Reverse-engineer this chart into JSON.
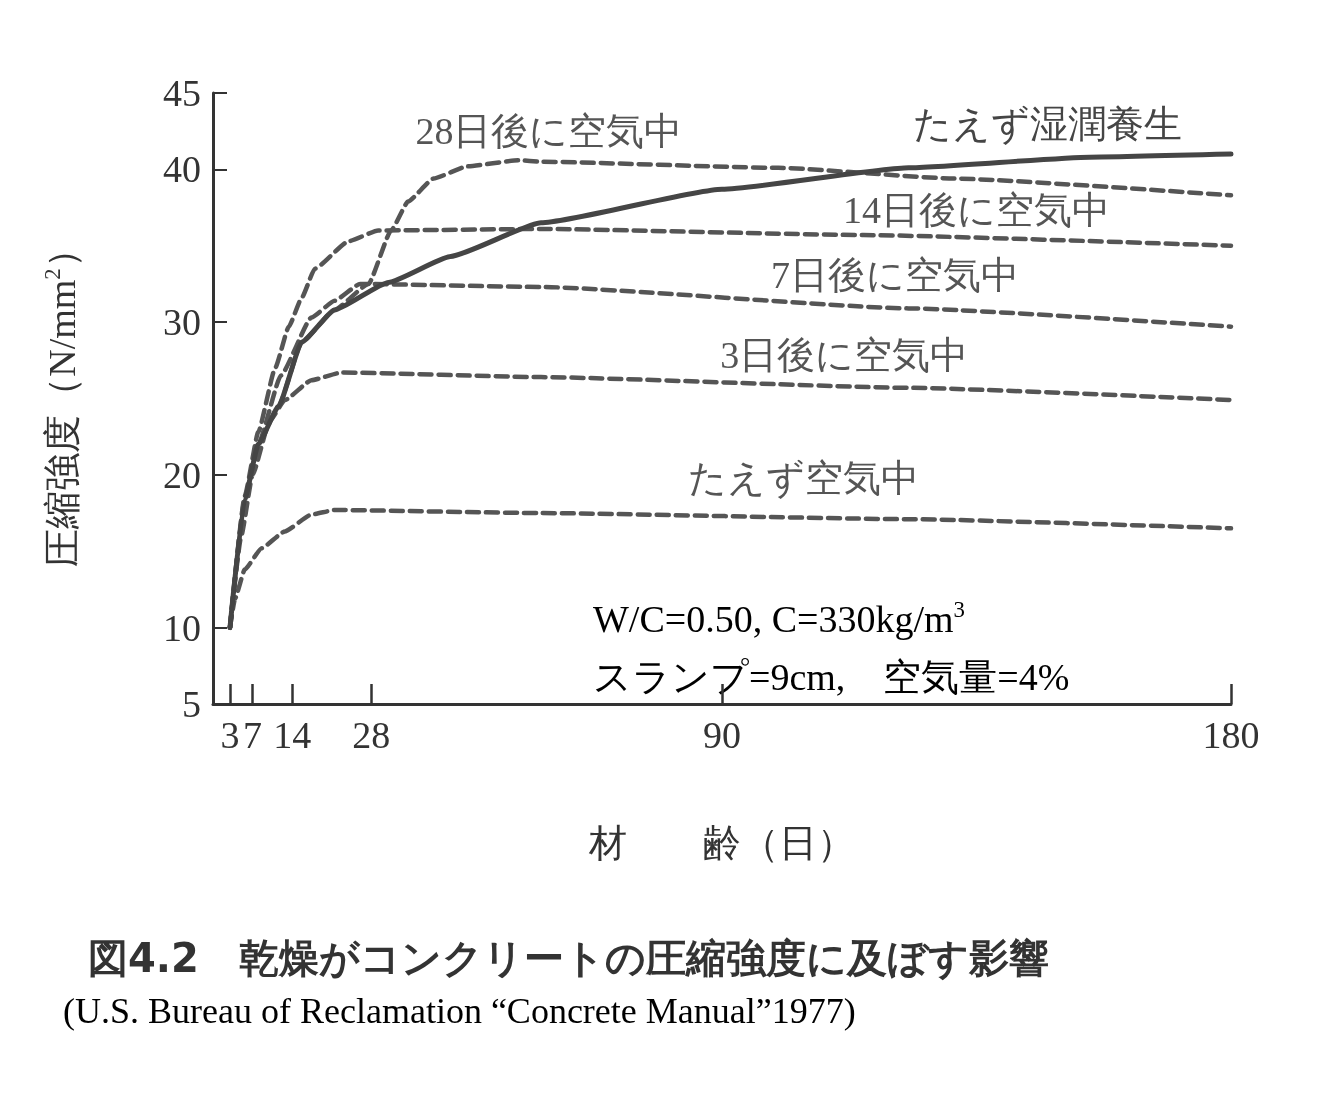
{
  "chart_data": {
    "type": "line",
    "title": "図4.2　乾燥がコンクリートの圧縮強度に及ぼす影響",
    "xlabel": "材　　齢（日）",
    "ylabel": "圧縮強度（N/mm$^{2}$）",
    "annotations": [
      "W/C=0.50, C=330kg/m$^{3}$",
      "スランプ=9cm,　空気量=4%",
      "(U.S. Bureau of Reclamation “Concrete Manual”1977)"
    ],
    "xlim": [
      0,
      180
    ],
    "xticks": [
      3,
      7,
      14,
      28,
      90,
      180
    ],
    "ylim": [
      5,
      45
    ],
    "yticks": [
      5,
      10,
      20,
      30,
      40,
      45
    ],
    "grid": false,
    "legend": false,
    "marker": "none",
    "series": [
      {
        "name": "たえず湿潤養生",
        "color": "#454545",
        "line_style": "solid",
        "x": [
          3,
          5.6,
          8,
          11.6,
          15.7,
          21.5,
          31,
          42,
          58,
          90,
          123,
          155,
          180
        ],
        "values": [
          10,
          18.4,
          22,
          24.5,
          28.7,
          30.8,
          32.6,
          34.3,
          36.5,
          38.7,
          40.1,
          40.8,
          41
        ]
      },
      {
        "name": "28日後に空気中",
        "color": "#555555",
        "line_style": "dashed",
        "x": [
          3,
          5.6,
          8,
          11.6,
          15.7,
          21.5,
          27.5,
          31.5,
          34.5,
          39,
          45,
          54,
          58,
          100,
          131,
          180
        ],
        "values": [
          10,
          18.4,
          22,
          24.5,
          28.7,
          30.8,
          32.5,
          36,
          37.9,
          39.4,
          40.2,
          40.6,
          40.5,
          40.1,
          39.4,
          38.3
        ]
      },
      {
        "name": "14日後に空気中",
        "color": "#555555",
        "line_style": "dashed",
        "x": [
          3,
          5.6,
          8,
          11,
          13.4,
          15.7,
          18,
          24,
          29.2,
          58,
          115,
          180
        ],
        "values": [
          10,
          18.6,
          22.8,
          27,
          29.7,
          31.6,
          33.5,
          35.3,
          36,
          36.1,
          35.7,
          35
        ]
      },
      {
        "name": "7日後に空気中",
        "color": "#555555",
        "line_style": "dashed",
        "x": [
          3,
          5.6,
          8,
          12,
          17.4,
          21.5,
          26,
          58,
          123,
          180
        ],
        "values": [
          10,
          18.2,
          22,
          26.5,
          30.3,
          31.4,
          32.5,
          32.3,
          30.9,
          29.7
        ]
      },
      {
        "name": "3日後に空気中",
        "color": "#555555",
        "line_style": "dashed",
        "x": [
          3,
          5,
          7,
          10,
          12.7,
          17.4,
          22.7,
          58,
          123,
          180
        ],
        "values": [
          10,
          16,
          20,
          23.5,
          24.9,
          26.2,
          26.7,
          26.4,
          25.7,
          24.9
        ]
      },
      {
        "name": "たえず空気中",
        "color": "#555555",
        "line_style": "dashed",
        "x": [
          3,
          3.9,
          5.6,
          8.6,
          12.7,
          17.4,
          21.5,
          58,
          123,
          180
        ],
        "values": [
          10,
          11.9,
          13.8,
          15.2,
          16.3,
          17.4,
          17.7,
          17.5,
          17.1,
          16.5
        ]
      }
    ]
  }
}
